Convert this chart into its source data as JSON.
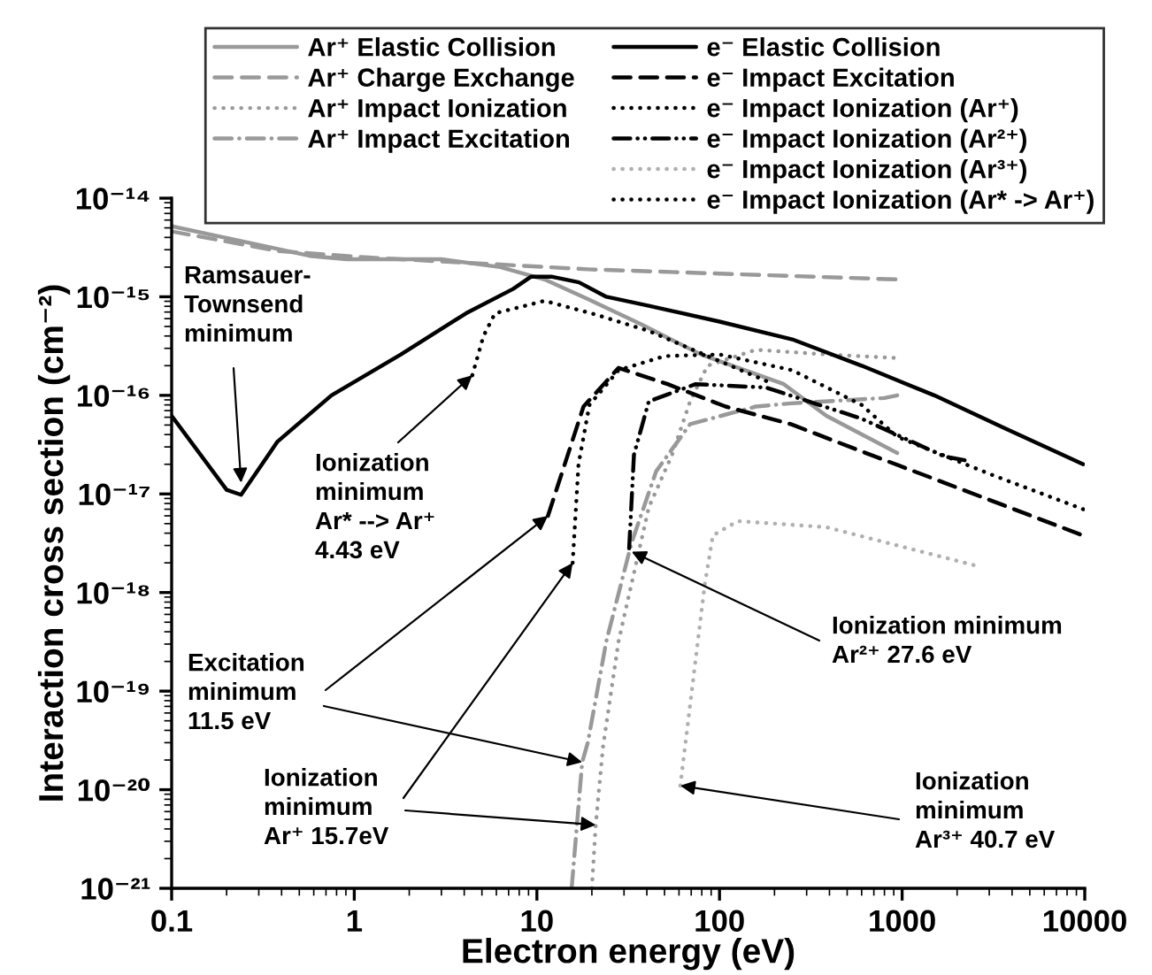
{
  "chart_data": {
    "type": "line",
    "log": "xy",
    "xlabel": "Electron energy (eV)",
    "ylabel": "Interaction cross section (cm⁻²)",
    "legend": "top",
    "xlim": [
      0.1,
      10000
    ],
    "ylim": [
      1e-21,
      1e-14
    ],
    "xticks": [
      {
        "value": 0.1,
        "label": "0.1"
      },
      {
        "value": 1,
        "label": "1"
      },
      {
        "value": 10,
        "label": "10"
      },
      {
        "value": 100,
        "label": "100"
      },
      {
        "value": 1000,
        "label": "1000"
      },
      {
        "value": 10000,
        "label": "10000"
      }
    ],
    "yticks": [
      {
        "value": 1e-21,
        "label": "10⁻²¹"
      },
      {
        "value": 1e-20,
        "label": "10⁻²⁰"
      },
      {
        "value": 1e-19,
        "label": "10⁻¹⁹"
      },
      {
        "value": 1e-18,
        "label": "10⁻¹⁸"
      },
      {
        "value": 1e-17,
        "label": "10⁻¹⁷"
      },
      {
        "value": 1e-16,
        "label": "10⁻¹⁶"
      },
      {
        "value": 1e-15,
        "label": "10⁻¹⁵"
      },
      {
        "value": 1e-14,
        "label": "10⁻¹⁴"
      }
    ],
    "series": [
      {
        "name": "Ar⁺ Elastic Collision",
        "color": "#999999",
        "line_style": "solid",
        "x": [
          0.1,
          0.57,
          0.91,
          3.0,
          6.3,
          11,
          19,
          37,
          79,
          225,
          385,
          940
        ],
        "values": [
          5.2e-15,
          2.6e-15,
          2.4e-15,
          2.4e-15,
          2e-15,
          1.5e-15,
          9.5e-16,
          5.3e-16,
          2.6e-16,
          1.3e-16,
          6.2e-17,
          2.6e-17
        ]
      },
      {
        "name": "Ar⁺ Charge Exchange",
        "color": "#999999",
        "line_style": "dashed",
        "x": [
          0.1,
          0.39,
          1.2,
          19,
          920
        ],
        "values": [
          4.6e-15,
          2.9e-15,
          2.5e-15,
          1.9e-15,
          1.5e-15
        ]
      },
      {
        "name": "Ar⁺ Impact Ionization",
        "color": "#999999",
        "line_style": "dotted",
        "x": [
          20,
          21,
          23,
          28,
          41,
          55,
          69,
          86,
          158,
          385,
          900
        ],
        "values": [
          1e-21,
          4.4e-21,
          2.7e-20,
          3.2e-19,
          7.3e-18,
          2.5e-17,
          8.7e-17,
          2e-16,
          2.9e-16,
          2.6e-16,
          2.4e-16
        ]
      },
      {
        "name": "Ar⁺ Impact Excitation",
        "color": "#999999",
        "line_style": "dashdot",
        "x": [
          15.5,
          17.7,
          19,
          24,
          33,
          45,
          69,
          158,
          246,
          800,
          940
        ],
        "values": [
          1e-21,
          1.9e-20,
          3e-20,
          3.2e-19,
          3.2e-18,
          1.7e-17,
          5.1e-17,
          7.7e-17,
          8.3e-17,
          9.4e-17,
          1e-16
        ]
      },
      {
        "name": "e⁻ Elastic Collision",
        "color": "#000000",
        "line_style": "solid",
        "x": [
          0.1,
          0.2,
          0.24,
          0.38,
          0.75,
          1.8,
          4.1,
          7.4,
          9.3,
          12,
          17,
          24,
          41,
          100,
          250,
          600,
          1500,
          3600,
          9800
        ],
        "values": [
          6.2e-17,
          1.1e-17,
          9.8e-18,
          3.4e-17,
          1e-16,
          2.6e-16,
          6.8e-16,
          1.2e-15,
          1.6e-15,
          1.6e-15,
          1.4e-15,
          1e-15,
          8.1e-16,
          5.6e-16,
          3.7e-16,
          2e-16,
          1e-16,
          4.7e-17,
          2e-17
        ]
      },
      {
        "name": "e⁻ Impact Excitation",
        "color": "#000000",
        "line_style": "dashed",
        "x": [
          11.5,
          18,
          28,
          52,
          108,
          246,
          600,
          1700,
          9400
        ],
        "values": [
          6e-18,
          7.7e-17,
          1.9e-16,
          1.3e-16,
          7.7e-17,
          5.1e-17,
          2.7e-17,
          1.3e-17,
          3.9e-18
        ]
      },
      {
        "name": "e⁻ Impact Ionization (Ar⁺)",
        "color": "#000000",
        "line_style": "dotted",
        "x": [
          15.7,
          16.9,
          19.4,
          28,
          50,
          100,
          250,
          600,
          940,
          3000,
          9800
        ],
        "values": [
          2e-18,
          2e-17,
          8e-17,
          1.8e-16,
          2.5e-16,
          2.6e-16,
          1.8e-16,
          8e-17,
          3.8e-17,
          1.6e-17,
          7e-18
        ]
      },
      {
        "name": "e⁻ Impact Ionization (Ar²⁺)",
        "color": "#000000",
        "line_style": "dashdotdot",
        "x": [
          32,
          34,
          41,
          74,
          180,
          600,
          1700,
          2200
        ],
        "values": [
          2.8e-18,
          2.5e-17,
          8.7e-17,
          1.3e-16,
          1.2e-16,
          5.8e-17,
          2.4e-17,
          2.2e-17
        ]
      },
      {
        "name": "e⁻ Impact Ionization (Ar³⁺)",
        "color": "#b0b0b0",
        "line_style": "dotted",
        "x": [
          61,
          83,
          92,
          126,
          385,
          2460
        ],
        "values": [
          1.1e-20,
          1.2e-18,
          3.8e-18,
          5.3e-18,
          4.6e-18,
          1.9e-18
        ]
      },
      {
        "name": "e⁻ Impact Ionization (Ar* -> Ar⁺)",
        "color": "#000000",
        "line_style": "dotted",
        "x": [
          4.43,
          5.1,
          5.9,
          9.3,
          11,
          21,
          41,
          180
        ],
        "values": [
          1.6e-16,
          4e-16,
          6.8e-16,
          8.4e-16,
          9.1e-16,
          6.6e-16,
          4.5e-16,
          1.4e-16
        ]
      }
    ],
    "annotations": [
      {
        "text": "Ramsauer-\nTownsend\nminimum",
        "x": 0.24,
        "y": 1.3e-17
      },
      {
        "text": "Ionization\nminimum\nAr* --> Ar⁺\n4.43 eV",
        "x": 4.43,
        "y": 1.6e-16
      },
      {
        "text": "Excitation\nminimum\n11.5 eV",
        "x": 11.5,
        "y": 6e-18
      },
      {
        "text": "Ionization\nminimum\nAr⁺ 15.7eV",
        "x": 15.7,
        "y": 2e-18
      },
      {
        "text": "Ionization minimum\nAr²⁺ 27.6 eV",
        "x": 33,
        "y": 2.6e-18
      },
      {
        "text": "Ionization\nminimum\nAr³⁺ 40.7 eV",
        "x": 61,
        "y": 1.1e-20
      }
    ]
  }
}
